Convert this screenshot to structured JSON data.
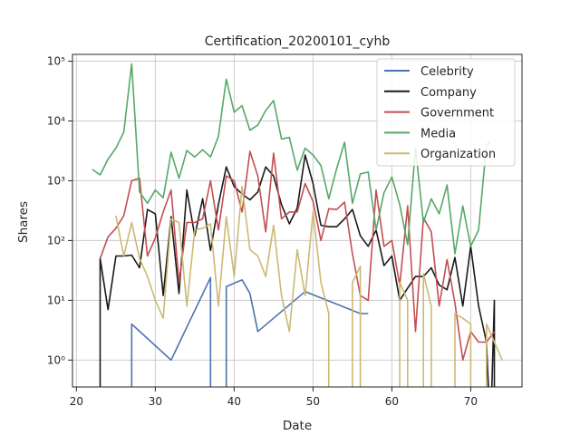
{
  "chart_data": {
    "type": "line",
    "title": "Certification_20200101_cyhb",
    "xlabel": "Date",
    "ylabel": "Shares",
    "xlim": [
      19.5,
      76.5
    ],
    "ylim": [
      0.55,
      130000
    ],
    "yscale": "symlog",
    "xticks": [
      20,
      30,
      40,
      50,
      60,
      70
    ],
    "yticks": [
      {
        "value": 1,
        "label": "10⁰"
      },
      {
        "value": 10,
        "label": "10¹"
      },
      {
        "value": 100,
        "label": "10²"
      },
      {
        "value": 1000,
        "label": "10³"
      },
      {
        "value": 10000,
        "label": "10⁴"
      },
      {
        "value": 100000,
        "label": "10⁵"
      }
    ],
    "grid": true,
    "legend_position": "top-right",
    "series": [
      {
        "name": "Celebrity",
        "color": "#4c72b0",
        "points": [
          [
            27,
            0
          ],
          [
            27,
            4
          ],
          [
            32,
            1
          ],
          [
            37,
            24
          ],
          [
            37,
            0
          ],
          [
            39,
            0
          ],
          [
            39,
            17
          ],
          [
            41,
            22
          ],
          [
            42,
            13
          ],
          [
            43,
            3
          ],
          [
            49,
            14
          ],
          [
            56,
            6
          ],
          [
            57,
            6
          ]
        ]
      },
      {
        "name": "Company",
        "color": "#1a1a1a",
        "points": [
          [
            23,
            0
          ],
          [
            23,
            50
          ],
          [
            24,
            7
          ],
          [
            25,
            55
          ],
          [
            26,
            55
          ],
          [
            27,
            57
          ],
          [
            28,
            35
          ],
          [
            29,
            330
          ],
          [
            30,
            280
          ],
          [
            31,
            12
          ],
          [
            32,
            250
          ],
          [
            33,
            13
          ],
          [
            34,
            700
          ],
          [
            35,
            120
          ],
          [
            36,
            500
          ],
          [
            37,
            68
          ],
          [
            38,
            400
          ],
          [
            39,
            1700
          ],
          [
            40,
            800
          ],
          [
            41,
            600
          ],
          [
            42,
            480
          ],
          [
            43,
            650
          ],
          [
            44,
            1700
          ],
          [
            45,
            1200
          ],
          [
            46,
            400
          ],
          [
            47,
            190
          ],
          [
            48,
            350
          ],
          [
            49,
            2700
          ],
          [
            50,
            900
          ],
          [
            51,
            180
          ],
          [
            52,
            170
          ],
          [
            53,
            170
          ],
          [
            54,
            230
          ],
          [
            55,
            330
          ],
          [
            56,
            120
          ],
          [
            57,
            80
          ],
          [
            58,
            150
          ],
          [
            59,
            38
          ],
          [
            60,
            55
          ],
          [
            61,
            10
          ],
          [
            62,
            16
          ],
          [
            63,
            25
          ],
          [
            64,
            25
          ],
          [
            65,
            35
          ],
          [
            66,
            18
          ],
          [
            67,
            15
          ],
          [
            68,
            52
          ],
          [
            69,
            8
          ],
          [
            70,
            80
          ],
          [
            71,
            8
          ],
          [
            72,
            2
          ],
          [
            72.5,
            0
          ],
          [
            73,
            10
          ],
          [
            73,
            0
          ]
        ]
      },
      {
        "name": "Government",
        "color": "#c44e52",
        "points": [
          [
            23,
            50
          ],
          [
            24,
            115
          ],
          [
            25,
            160
          ],
          [
            26,
            260
          ],
          [
            27,
            1000
          ],
          [
            28,
            1100
          ],
          [
            29,
            55
          ],
          [
            30,
            110
          ],
          [
            31,
            300
          ],
          [
            32,
            700
          ],
          [
            33,
            20
          ],
          [
            34,
            200
          ],
          [
            35,
            200
          ],
          [
            36,
            230
          ],
          [
            37,
            1000
          ],
          [
            38,
            150
          ],
          [
            39,
            1200
          ],
          [
            40,
            1000
          ],
          [
            41,
            300
          ],
          [
            42,
            3100
          ],
          [
            43,
            1200
          ],
          [
            44,
            140
          ],
          [
            45,
            2900
          ],
          [
            46,
            230
          ],
          [
            47,
            300
          ],
          [
            48,
            300
          ],
          [
            49,
            900
          ],
          [
            50,
            450
          ],
          [
            51,
            100
          ],
          [
            52,
            340
          ],
          [
            53,
            330
          ],
          [
            54,
            440
          ],
          [
            55,
            60
          ],
          [
            56,
            12
          ],
          [
            57,
            10
          ],
          [
            58,
            700
          ],
          [
            59,
            80
          ],
          [
            60,
            100
          ],
          [
            61,
            18
          ],
          [
            62,
            380
          ],
          [
            63,
            3
          ],
          [
            64,
            240
          ],
          [
            65,
            140
          ],
          [
            66,
            8
          ],
          [
            67,
            48
          ],
          [
            68,
            9
          ],
          [
            69,
            1
          ],
          [
            70,
            3
          ],
          [
            71,
            2
          ],
          [
            72,
            2
          ],
          [
            73,
            3
          ]
        ]
      },
      {
        "name": "Media",
        "color": "#55a868",
        "points": [
          [
            22,
            1550
          ],
          [
            23,
            1250
          ],
          [
            24,
            2300
          ],
          [
            25,
            3500
          ],
          [
            26,
            6500
          ],
          [
            27,
            90000
          ],
          [
            28,
            650
          ],
          [
            29,
            420
          ],
          [
            30,
            700
          ],
          [
            31,
            520
          ],
          [
            32,
            3000
          ],
          [
            33,
            1100
          ],
          [
            34,
            3200
          ],
          [
            35,
            2500
          ],
          [
            36,
            3300
          ],
          [
            37,
            2500
          ],
          [
            38,
            5500
          ],
          [
            39,
            50000
          ],
          [
            40,
            14000
          ],
          [
            41,
            18000
          ],
          [
            42,
            7000
          ],
          [
            43,
            8500
          ],
          [
            44,
            15000
          ],
          [
            45,
            22000
          ],
          [
            46,
            5000
          ],
          [
            47,
            5300
          ],
          [
            48,
            1500
          ],
          [
            49,
            3500
          ],
          [
            50,
            2700
          ],
          [
            51,
            1800
          ],
          [
            52,
            500
          ],
          [
            53,
            1600
          ],
          [
            54,
            4400
          ],
          [
            55,
            420
          ],
          [
            56,
            1300
          ],
          [
            57,
            1400
          ],
          [
            58,
            150
          ],
          [
            59,
            630
          ],
          [
            60,
            1150
          ],
          [
            61,
            400
          ],
          [
            62,
            85
          ],
          [
            63,
            3500
          ],
          [
            64,
            200
          ],
          [
            65,
            500
          ],
          [
            66,
            280
          ],
          [
            67,
            850
          ],
          [
            68,
            60
          ],
          [
            69,
            380
          ],
          [
            70,
            80
          ],
          [
            71,
            150
          ],
          [
            72,
            4000
          ],
          [
            72.5,
            4500
          ]
        ]
      },
      {
        "name": "Organization",
        "color": "#ccb974",
        "points": [
          [
            25,
            260
          ],
          [
            26,
            55
          ],
          [
            27,
            200
          ],
          [
            28,
            50
          ],
          [
            29,
            25
          ],
          [
            30,
            10
          ],
          [
            31,
            5
          ],
          [
            32,
            230
          ],
          [
            33,
            200
          ],
          [
            34,
            8
          ],
          [
            35,
            150
          ],
          [
            36,
            160
          ],
          [
            37,
            190
          ],
          [
            38,
            8
          ],
          [
            39,
            250
          ],
          [
            40,
            25
          ],
          [
            41,
            800
          ],
          [
            42,
            70
          ],
          [
            43,
            55
          ],
          [
            44,
            25
          ],
          [
            45,
            180
          ],
          [
            46,
            12
          ],
          [
            47,
            3
          ],
          [
            48,
            70
          ],
          [
            49,
            12
          ],
          [
            50,
            300
          ],
          [
            51,
            20
          ],
          [
            52,
            6
          ],
          [
            52,
            0
          ],
          [
            55,
            0
          ],
          [
            55,
            20
          ],
          [
            56,
            37
          ],
          [
            56,
            0
          ],
          [
            61,
            0
          ],
          [
            61,
            20
          ],
          [
            62,
            10
          ],
          [
            62,
            0
          ],
          [
            64,
            0
          ],
          [
            64,
            28
          ],
          [
            65,
            8
          ],
          [
            65,
            0
          ],
          [
            68,
            0
          ],
          [
            68,
            6
          ],
          [
            69,
            5
          ],
          [
            70,
            4
          ],
          [
            70,
            0
          ],
          [
            72,
            0
          ],
          [
            72,
            4
          ],
          [
            73,
            2
          ],
          [
            74,
            1
          ]
        ]
      }
    ]
  }
}
